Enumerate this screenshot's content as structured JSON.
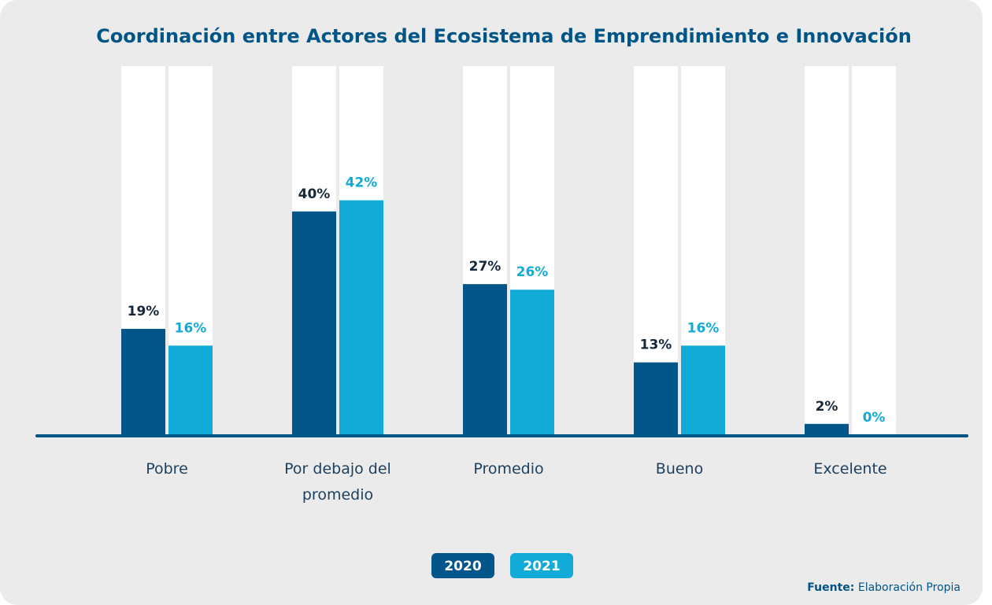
{
  "chart_data": {
    "type": "bar",
    "title": "Coordinación entre Actores del Ecosistema de Emprendimiento e Innovación",
    "categories": [
      "Pobre",
      "Por debajo del promedio",
      "Promedio",
      "Bueno",
      "Excelente"
    ],
    "series": [
      {
        "name": "2020",
        "color": "#03558a",
        "label_color": "#15283b",
        "values": [
          19,
          40,
          27,
          13,
          2
        ],
        "value_labels": [
          "19%",
          "40%",
          "27%",
          "13%",
          "2%"
        ]
      },
      {
        "name": "2021",
        "color": "#12aad6",
        "label_color": "#12aad6",
        "values": [
          16,
          42,
          26,
          16,
          0
        ],
        "value_labels": [
          "16%",
          "42%",
          "26%",
          "16%",
          "0%"
        ]
      }
    ],
    "ylim": [
      0,
      66
    ],
    "source_label": "Fuente:",
    "source": "Elaboración Propia"
  }
}
